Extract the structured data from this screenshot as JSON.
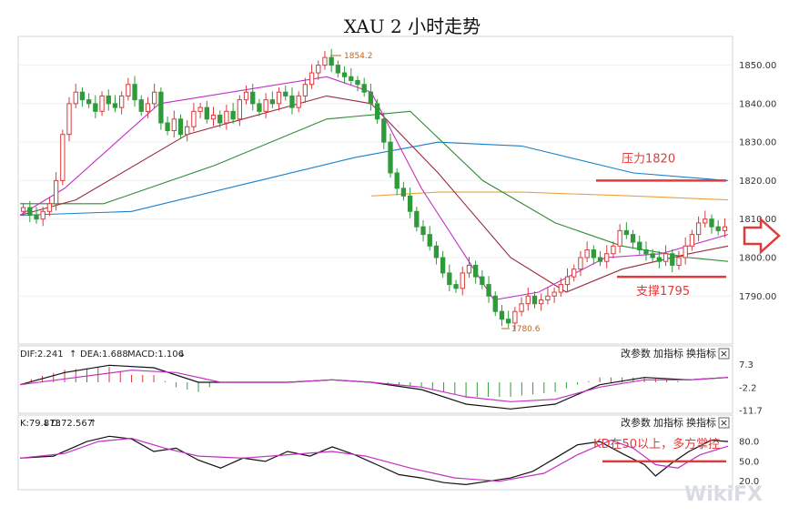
{
  "chart_data": {
    "type": "candlestick",
    "title": "XAU 2 小时走势",
    "y_ticks": [
      "1850.00",
      "1840.00",
      "1830.00",
      "1820.00",
      "1810.00",
      "1800.00",
      "1790.00"
    ],
    "y_tick_values": [
      1850,
      1840,
      1830,
      1820,
      1810,
      1800,
      1790
    ],
    "ylim": [
      1778,
      1857
    ],
    "price_labels": {
      "high": "1854.2",
      "low": "1780.6"
    },
    "close_series": [
      1813,
      1811,
      1810,
      1812,
      1814,
      1820,
      1832,
      1840,
      1843,
      1841,
      1840,
      1838,
      1842,
      1840,
      1839,
      1842,
      1845,
      1841,
      1838,
      1840,
      1843,
      1835,
      1833,
      1836,
      1832,
      1834,
      1838,
      1839,
      1836,
      1837,
      1835,
      1838,
      1836,
      1841,
      1843,
      1840,
      1838,
      1841,
      1840,
      1843,
      1842,
      1839,
      1842,
      1845,
      1848,
      1850,
      1852,
      1850,
      1848,
      1847,
      1846,
      1845,
      1843,
      1840,
      1836,
      1830,
      1822,
      1818,
      1816,
      1812,
      1808,
      1806,
      1803,
      1800,
      1796,
      1793,
      1792,
      1796,
      1798,
      1795,
      1793,
      1790,
      1786,
      1784,
      1783,
      1786,
      1788,
      1790,
      1788,
      1789,
      1790,
      1791,
      1793,
      1795,
      1797,
      1800,
      1802,
      1800,
      1799,
      1801,
      1803,
      1807,
      1806,
      1804,
      1802,
      1801,
      1800,
      1799,
      1801,
      1798,
      1800,
      1803,
      1806,
      1809,
      1810,
      1808,
      1807,
      1808
    ],
    "resistance_label": "压力1820",
    "resistance_value": 1820,
    "support_label": "支撑1795",
    "support_value": 1795,
    "moving_averages": [
      {
        "color": "#1a7fc9",
        "points": [
          [
            0,
            1811
          ],
          [
            20,
            1812
          ],
          [
            40,
            1819
          ],
          [
            60,
            1826
          ],
          [
            75,
            1830
          ],
          [
            90,
            1829
          ],
          [
            110,
            1822
          ],
          [
            127,
            1820
          ]
        ]
      },
      {
        "color": "#e8a43a",
        "points": [
          [
            63,
            1816
          ],
          [
            75,
            1817
          ],
          [
            90,
            1817
          ],
          [
            110,
            1816
          ],
          [
            127,
            1815
          ]
        ]
      },
      {
        "color": "#2e8b36",
        "points": [
          [
            0,
            1814
          ],
          [
            15,
            1814
          ],
          [
            35,
            1824
          ],
          [
            55,
            1836
          ],
          [
            70,
            1838
          ],
          [
            83,
            1820
          ],
          [
            96,
            1809
          ],
          [
            108,
            1803
          ],
          [
            120,
            1800
          ],
          [
            127,
            1799
          ]
        ]
      },
      {
        "color": "#9a2a3a",
        "points": [
          [
            0,
            1811
          ],
          [
            10,
            1815
          ],
          [
            30,
            1832
          ],
          [
            55,
            1842
          ],
          [
            63,
            1840
          ],
          [
            75,
            1822
          ],
          [
            88,
            1800
          ],
          [
            98,
            1791
          ],
          [
            108,
            1797
          ],
          [
            120,
            1801
          ],
          [
            127,
            1803
          ]
        ]
      },
      {
        "color": "#c42fc4",
        "points": [
          [
            0,
            1811
          ],
          [
            8,
            1818
          ],
          [
            25,
            1840
          ],
          [
            55,
            1847
          ],
          [
            63,
            1843
          ],
          [
            72,
            1818
          ],
          [
            85,
            1789
          ],
          [
            93,
            1791
          ],
          [
            105,
            1800
          ],
          [
            115,
            1801
          ],
          [
            127,
            1806
          ]
        ]
      }
    ],
    "macd": {
      "label_dif": "DIF:2.241",
      "label_dea": "DEA:1.688",
      "label_macd": "MACD:1.106",
      "y_ticks": [
        "7.3",
        "-2.2",
        "-11.7"
      ],
      "y_tick_values": [
        7.3,
        -2.2,
        -11.7
      ],
      "ylim": [
        -12,
        9
      ],
      "dif": [
        [
          0,
          -1
        ],
        [
          8,
          4
        ],
        [
          16,
          7
        ],
        [
          24,
          6
        ],
        [
          32,
          0
        ],
        [
          48,
          0
        ],
        [
          56,
          1
        ],
        [
          63,
          0
        ],
        [
          72,
          -3
        ],
        [
          80,
          -9
        ],
        [
          88,
          -11
        ],
        [
          96,
          -9
        ],
        [
          104,
          -1
        ],
        [
          112,
          2
        ],
        [
          120,
          1
        ],
        [
          127,
          2
        ]
      ],
      "dea": [
        [
          0,
          -1
        ],
        [
          10,
          2
        ],
        [
          20,
          5
        ],
        [
          28,
          4
        ],
        [
          36,
          0
        ],
        [
          48,
          0
        ],
        [
          56,
          1
        ],
        [
          63,
          0
        ],
        [
          72,
          -2
        ],
        [
          80,
          -6
        ],
        [
          88,
          -8
        ],
        [
          96,
          -7
        ],
        [
          104,
          -2
        ],
        [
          112,
          1
        ],
        [
          120,
          1
        ],
        [
          127,
          2
        ]
      ]
    },
    "kdj": {
      "label_k": "K:79.873",
      "label_d": "D:72.567",
      "y_ticks": [
        "80.0",
        "50.0",
        "20.0"
      ],
      "y_tick_values": [
        80,
        50,
        20
      ],
      "ylim": [
        10,
        98
      ],
      "k": [
        [
          0,
          55
        ],
        [
          6,
          58
        ],
        [
          12,
          80
        ],
        [
          16,
          88
        ],
        [
          20,
          84
        ],
        [
          24,
          65
        ],
        [
          28,
          70
        ],
        [
          32,
          52
        ],
        [
          36,
          40
        ],
        [
          40,
          55
        ],
        [
          44,
          50
        ],
        [
          48,
          65
        ],
        [
          52,
          58
        ],
        [
          56,
          72
        ],
        [
          60,
          60
        ],
        [
          64,
          45
        ],
        [
          68,
          30
        ],
        [
          72,
          25
        ],
        [
          76,
          18
        ],
        [
          80,
          15
        ],
        [
          84,
          20
        ],
        [
          88,
          25
        ],
        [
          92,
          35
        ],
        [
          96,
          55
        ],
        [
          100,
          75
        ],
        [
          104,
          80
        ],
        [
          108,
          62
        ],
        [
          112,
          45
        ],
        [
          114,
          28
        ],
        [
          117,
          48
        ],
        [
          120,
          65
        ],
        [
          124,
          82
        ],
        [
          127,
          80
        ]
      ],
      "d": [
        [
          0,
          55
        ],
        [
          8,
          62
        ],
        [
          14,
          80
        ],
        [
          20,
          85
        ],
        [
          26,
          70
        ],
        [
          32,
          58
        ],
        [
          40,
          55
        ],
        [
          48,
          60
        ],
        [
          56,
          65
        ],
        [
          62,
          58
        ],
        [
          70,
          40
        ],
        [
          78,
          25
        ],
        [
          86,
          20
        ],
        [
          94,
          32
        ],
        [
          100,
          60
        ],
        [
          106,
          82
        ],
        [
          110,
          70
        ],
        [
          114,
          45
        ],
        [
          118,
          40
        ],
        [
          122,
          60
        ],
        [
          127,
          73
        ]
      ]
    },
    "kd_annotation": "KD在50以上，多方掌控",
    "kd_line_value": 50
  },
  "toolbar": {
    "change_params": "改参数",
    "add_indicator": "加指标",
    "switch_indicator": "换指标",
    "close": "×"
  },
  "watermark": "WikiFX"
}
